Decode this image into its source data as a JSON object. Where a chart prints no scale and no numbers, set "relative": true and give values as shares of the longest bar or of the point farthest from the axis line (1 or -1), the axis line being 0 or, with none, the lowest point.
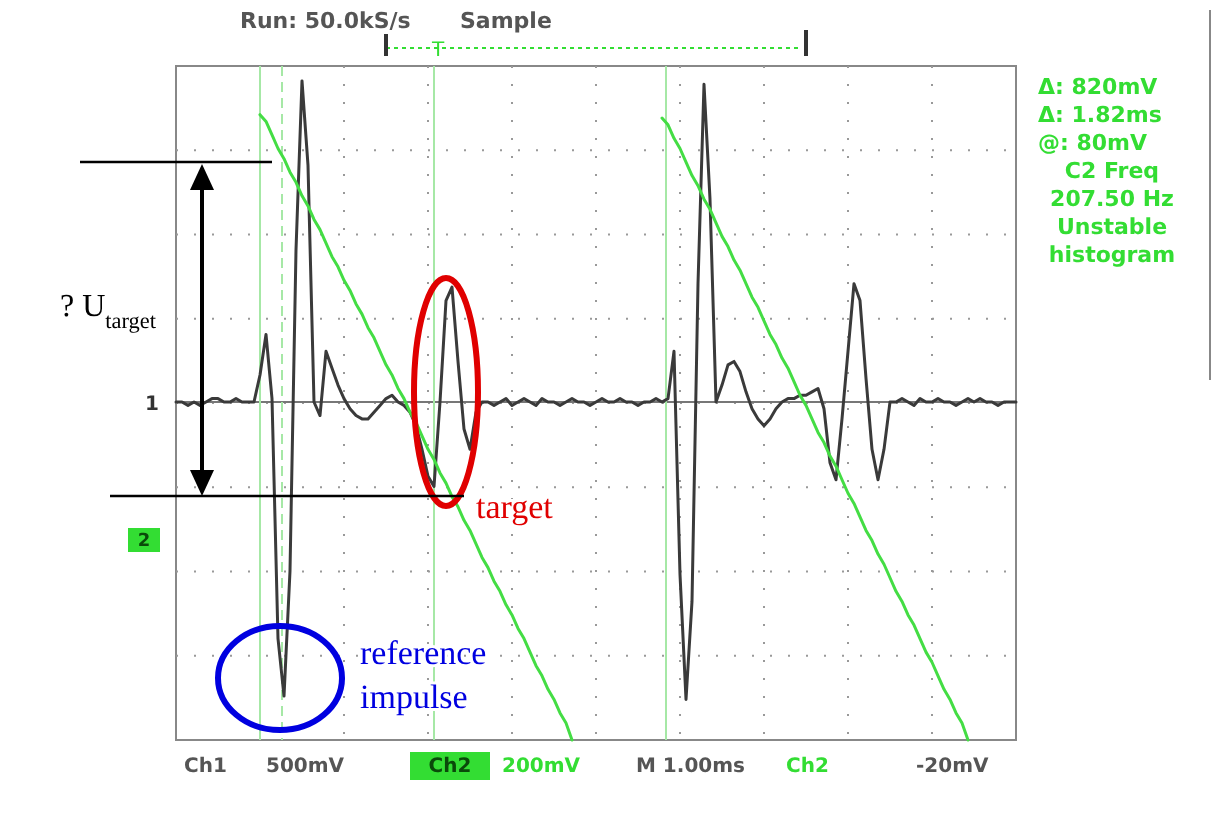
{
  "chart_data": {
    "type": "line",
    "relative": true,
    "grid": true,
    "marker": "none",
    "line_style": "solid",
    "categories": [
      null,
      null,
      null,
      null,
      null,
      null,
      null,
      null,
      null,
      null,
      null,
      null,
      null,
      null,
      null,
      null,
      null,
      null,
      null,
      null,
      null,
      null,
      null,
      null,
      null,
      null,
      null,
      null,
      null,
      null,
      null,
      null,
      null,
      null,
      null,
      null,
      null,
      null,
      null,
      null,
      null,
      null,
      null,
      null,
      null,
      null,
      null,
      null,
      null,
      null,
      null,
      null,
      null,
      null,
      null,
      null,
      null,
      null,
      null,
      null,
      null,
      null,
      null,
      null,
      null,
      null,
      null,
      null,
      null,
      null,
      null,
      null,
      null,
      null,
      null,
      null,
      null,
      null,
      null,
      null,
      null,
      null,
      null,
      null,
      null,
      null,
      null,
      null,
      null,
      null,
      null,
      null,
      null,
      null,
      null,
      null,
      null,
      null,
      null,
      null,
      null,
      null,
      null,
      null,
      null,
      null,
      null,
      null,
      null,
      null,
      null,
      null,
      null,
      null,
      null,
      null,
      null,
      null,
      null,
      null,
      null,
      null,
      null,
      null,
      null,
      null,
      null,
      null,
      null,
      null,
      null,
      null,
      null,
      null,
      null,
      null,
      null,
      null,
      null,
      null,
      null
    ],
    "series": [
      {
        "color": "#3a3a3a",
        "values": [
          0,
          0,
          -0.01,
          0,
          -0.01,
          0,
          0.01,
          0.01,
          0,
          0,
          0.01,
          0,
          0,
          0,
          0.08,
          0.2,
          0.01,
          -0.7,
          -0.87,
          -0.5,
          0.45,
          0.95,
          0.7,
          0,
          -0.04,
          0.15,
          0.1,
          0.05,
          0.01,
          -0.02,
          -0.04,
          -0.05,
          -0.05,
          -0.03,
          -0.01,
          0.01,
          0.02,
          0,
          -0.01,
          -0.03,
          -0.07,
          -0.14,
          -0.22,
          -0.25,
          0,
          0.3,
          0.34,
          0.12,
          -0.08,
          -0.14,
          -0.03,
          0,
          0,
          -0.01,
          0,
          0.01,
          -0.01,
          0,
          0.01,
          0,
          -0.01,
          0.01,
          0,
          0,
          -0.01,
          0,
          0.01,
          0,
          0,
          -0.01,
          0,
          0.01,
          0,
          0,
          0.01,
          0,
          0,
          -0.01,
          0,
          0,
          0.01,
          0,
          0.01,
          0.15,
          -0.51,
          -0.88,
          -0.59,
          0.35,
          0.94,
          0.6,
          0,
          0.05,
          0.11,
          0.12,
          0.09,
          0.03,
          -0.02,
          -0.05,
          -0.07,
          -0.05,
          -0.02,
          0,
          0.01,
          0.01,
          0.02,
          0.02,
          0.03,
          0.04,
          -0.02,
          -0.18,
          -0.23,
          -0.05,
          0.15,
          0.35,
          0.3,
          0.07,
          -0.14,
          -0.23,
          -0.14,
          0,
          0,
          0.01,
          0,
          -0.01,
          0.01,
          0,
          0,
          0.01,
          0,
          0,
          -0.01,
          0,
          0.01,
          0,
          0.01,
          0,
          0,
          -0.01,
          0,
          0,
          0
        ]
      },
      {
        "color": "#44dd44",
        "values": [
          null,
          null,
          null,
          null,
          null,
          null,
          null,
          null,
          null,
          null,
          null,
          null,
          null,
          null,
          0.85,
          0.83,
          0.79,
          0.75,
          0.72,
          0.68,
          0.65,
          0.61,
          0.58,
          0.54,
          0.51,
          0.47,
          0.43,
          0.4,
          0.36,
          0.33,
          0.29,
          0.26,
          0.22,
          0.19,
          0.15,
          0.11,
          0.08,
          0.04,
          0.01,
          -0.03,
          -0.06,
          -0.1,
          -0.14,
          -0.17,
          -0.21,
          -0.24,
          -0.28,
          -0.31,
          -0.35,
          -0.38,
          -0.42,
          -0.46,
          -0.49,
          -0.53,
          -0.56,
          -0.6,
          -0.63,
          -0.67,
          -0.7,
          -0.74,
          -0.78,
          -0.81,
          -0.85,
          -0.88,
          -0.92,
          -0.95,
          -1,
          null,
          null,
          null,
          null,
          null,
          null,
          null,
          null,
          null,
          null,
          null,
          null,
          null,
          null,
          0.84,
          0.82,
          0.78,
          0.75,
          0.71,
          0.67,
          0.64,
          0.6,
          0.57,
          0.53,
          0.49,
          0.46,
          0.42,
          0.39,
          0.35,
          0.31,
          0.28,
          0.24,
          0.2,
          0.17,
          0.13,
          0.1,
          0.06,
          0.02,
          -0.01,
          -0.05,
          -0.09,
          -0.12,
          -0.16,
          -0.19,
          -0.23,
          -0.27,
          -0.3,
          -0.34,
          -0.38,
          -0.41,
          -0.45,
          -0.48,
          -0.52,
          -0.56,
          -0.59,
          -0.63,
          -0.66,
          -0.7,
          -0.74,
          -0.77,
          -0.81,
          -0.85,
          -0.88,
          -0.92,
          -0.95,
          -1,
          null,
          null,
          null,
          null,
          null,
          null,
          null,
          null
        ]
      }
    ],
    "annotations": [
      "Run: 50.0kS/s",
      "Sample",
      "T",
      "Δ: 820mV",
      "Δ: 1.82ms",
      "@: 80mV",
      "C2 Freq",
      "207.50 Hz",
      "Unstable",
      "histogram",
      "Ch1",
      "500mV",
      "Ch2",
      "200mV",
      "M 1.00ms",
      "Ch2",
      "-20mV",
      "1",
      "2",
      "? U$_{target}$",
      "target",
      "reference impulse"
    ]
  }
}
